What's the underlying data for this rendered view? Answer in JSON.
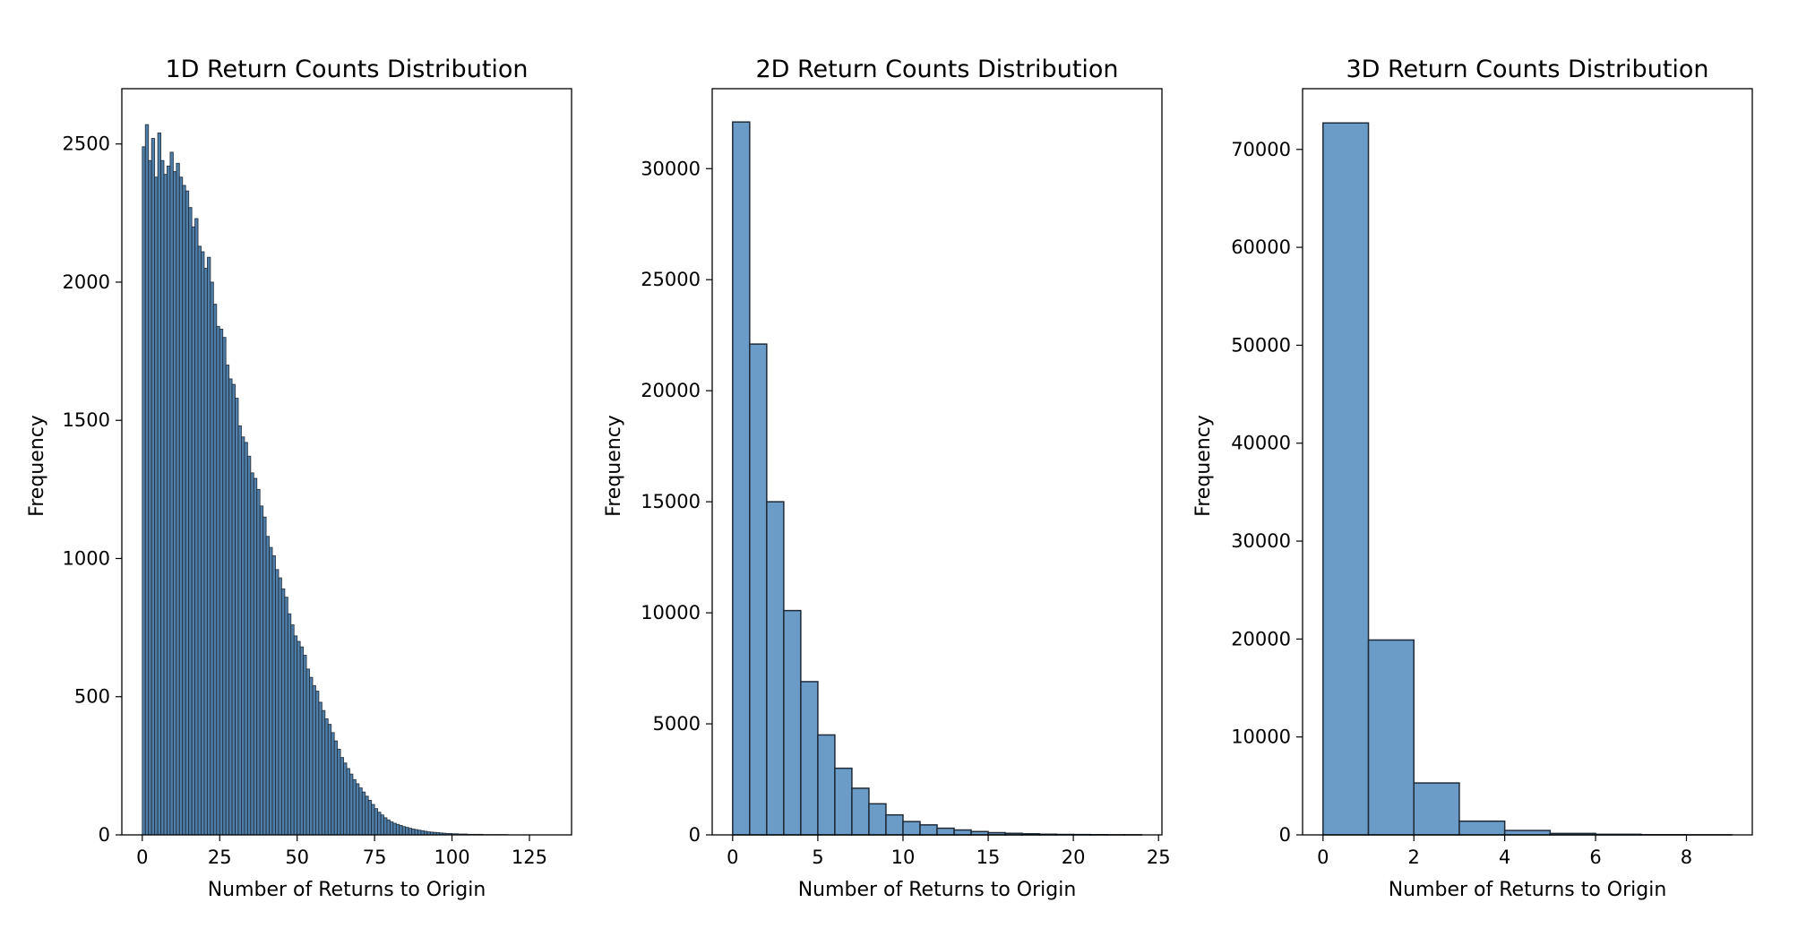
{
  "chart_data": [
    {
      "type": "bar",
      "title": "1D Return Counts Distribution",
      "xlabel": "Number of Returns to Origin",
      "ylabel": "Frequency",
      "bin_start": 0,
      "bin_width": 1,
      "xlim": [
        -6.6,
        138.6
      ],
      "ylim": [
        0,
        2700
      ],
      "xticks": [
        0,
        25,
        50,
        75,
        100,
        125
      ],
      "yticks": [
        0,
        500,
        1000,
        1500,
        2000,
        2500
      ],
      "values": [
        2490,
        2570,
        2440,
        2520,
        2380,
        2540,
        2440,
        2390,
        2420,
        2470,
        2400,
        2430,
        2380,
        2350,
        2330,
        2270,
        2200,
        2230,
        2130,
        2110,
        2050,
        2090,
        2000,
        1920,
        1840,
        1830,
        1800,
        1700,
        1650,
        1630,
        1580,
        1480,
        1440,
        1420,
        1370,
        1310,
        1290,
        1250,
        1190,
        1150,
        1080,
        1040,
        1010,
        960,
        930,
        890,
        860,
        800,
        760,
        720,
        700,
        680,
        650,
        600,
        570,
        540,
        520,
        480,
        450,
        420,
        400,
        370,
        340,
        310,
        280,
        260,
        240,
        220,
        200,
        185,
        170,
        155,
        140,
        125,
        110,
        95,
        82,
        72,
        62,
        54,
        47,
        42,
        38,
        34,
        30,
        27,
        24,
        21,
        19,
        17,
        15,
        13,
        11,
        10,
        9,
        8,
        7,
        6,
        5,
        5,
        4,
        4,
        3,
        3,
        3,
        2,
        2,
        2,
        2,
        2,
        1,
        1,
        1,
        1,
        1,
        1,
        1,
        1,
        0,
        0,
        0,
        0,
        0,
        0,
        0,
        0,
        0,
        0,
        0,
        0
      ],
      "bar_color": "#4f7ea8",
      "edge_color": "#1f2b38"
    },
    {
      "type": "bar",
      "title": "2D Return Counts Distribution",
      "xlabel": "Number of Returns to Origin",
      "ylabel": "Frequency",
      "bin_start": 0,
      "bin_width": 1,
      "xlim": [
        -1.2,
        25.2
      ],
      "ylim": [
        0,
        33600
      ],
      "xticks": [
        0,
        5,
        10,
        15,
        20,
        25
      ],
      "yticks": [
        0,
        5000,
        10000,
        15000,
        20000,
        25000,
        30000
      ],
      "values": [
        32100,
        22100,
        15000,
        10100,
        6900,
        4500,
        3000,
        2100,
        1400,
        900,
        600,
        450,
        300,
        220,
        150,
        100,
        70,
        50,
        30,
        20,
        15,
        10,
        5,
        5
      ],
      "bar_color": "#6b9bc7",
      "edge_color": "#1f2b38"
    },
    {
      "type": "bar",
      "title": "3D Return Counts Distribution",
      "xlabel": "Number of Returns to Origin",
      "ylabel": "Frequency",
      "bin_start": 0,
      "bin_width": 1,
      "xlim": [
        -0.45,
        9.45
      ],
      "ylim": [
        0,
        76200
      ],
      "xticks": [
        0,
        2,
        4,
        6,
        8
      ],
      "yticks": [
        0,
        10000,
        20000,
        30000,
        40000,
        50000,
        60000,
        70000
      ],
      "values": [
        72700,
        19900,
        5300,
        1400,
        450,
        150,
        60,
        20,
        10
      ],
      "bar_color": "#6b9bc7",
      "edge_color": "#1f2b38"
    }
  ]
}
